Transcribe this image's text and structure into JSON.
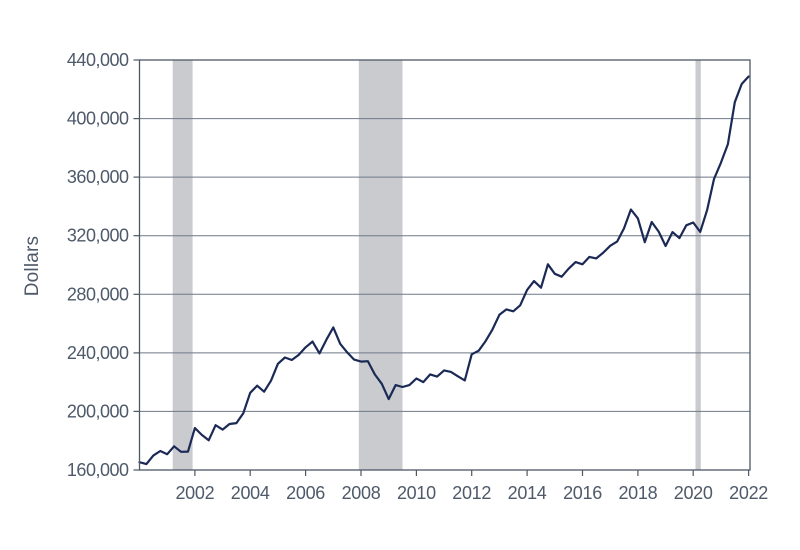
{
  "chart_data": {
    "type": "line",
    "title": "",
    "ylabel": "Dollars",
    "xlabel": "",
    "frequency": "quarterly",
    "x_start": 2000.0,
    "x_step": 0.25,
    "xlim": [
      2000.0,
      2022.05
    ],
    "ylim": [
      160000,
      440000
    ],
    "grid": true,
    "legend": "none",
    "y_ticks": [
      160000,
      200000,
      240000,
      280000,
      320000,
      360000,
      400000,
      440000
    ],
    "y_tick_labels": [
      "160,000",
      "200,000",
      "240,000",
      "280,000",
      "320,000",
      "360,000",
      "400,000",
      "440,000"
    ],
    "x_ticks": [
      2002,
      2004,
      2006,
      2008,
      2010,
      2012,
      2014,
      2016,
      2018,
      2020,
      2022
    ],
    "x_tick_labels": [
      "2002",
      "2004",
      "2006",
      "2008",
      "2010",
      "2012",
      "2014",
      "2016",
      "2018",
      "2020",
      "2022"
    ],
    "series": [
      {
        "color": "#1b2a55",
        "values": [
          165300,
          164000,
          169800,
          173000,
          170800,
          176200,
          172400,
          172600,
          188700,
          184000,
          180300,
          190600,
          187600,
          191400,
          192000,
          198800,
          212700,
          217600,
          213500,
          221000,
          232500,
          236800,
          235100,
          238600,
          243800,
          247700,
          239600,
          249000,
          257400,
          246200,
          240300,
          235400,
          234000,
          234300,
          225300,
          218900,
          208400,
          218000,
          216700,
          218000,
          222500,
          220000,
          225300,
          223800,
          228000,
          227000,
          224000,
          221200,
          239000,
          241500,
          248000,
          256000,
          266000,
          269700,
          268400,
          272500,
          283000,
          289000,
          284500,
          300500,
          294000,
          292000,
          297500,
          302000,
          300500,
          305500,
          304500,
          308500,
          313100,
          316000,
          325000,
          337900,
          331800,
          315600,
          329400,
          322900,
          313000,
          322500,
          318400,
          327100,
          329000,
          322600,
          337500,
          358700,
          369800,
          382600,
          411200,
          423600,
          428700
        ]
      }
    ],
    "recession_bands": [
      {
        "start": 2001.2,
        "end": 2001.92
      },
      {
        "start": 2007.92,
        "end": 2009.5
      },
      {
        "start": 2020.08,
        "end": 2020.27
      }
    ],
    "colors": {
      "line": "#1b2a55",
      "recession_band": "#c9cbce",
      "grid": "#6e7988",
      "axis": "#4d5866",
      "label": "#4e5a6a",
      "background": "#ffffff"
    }
  }
}
